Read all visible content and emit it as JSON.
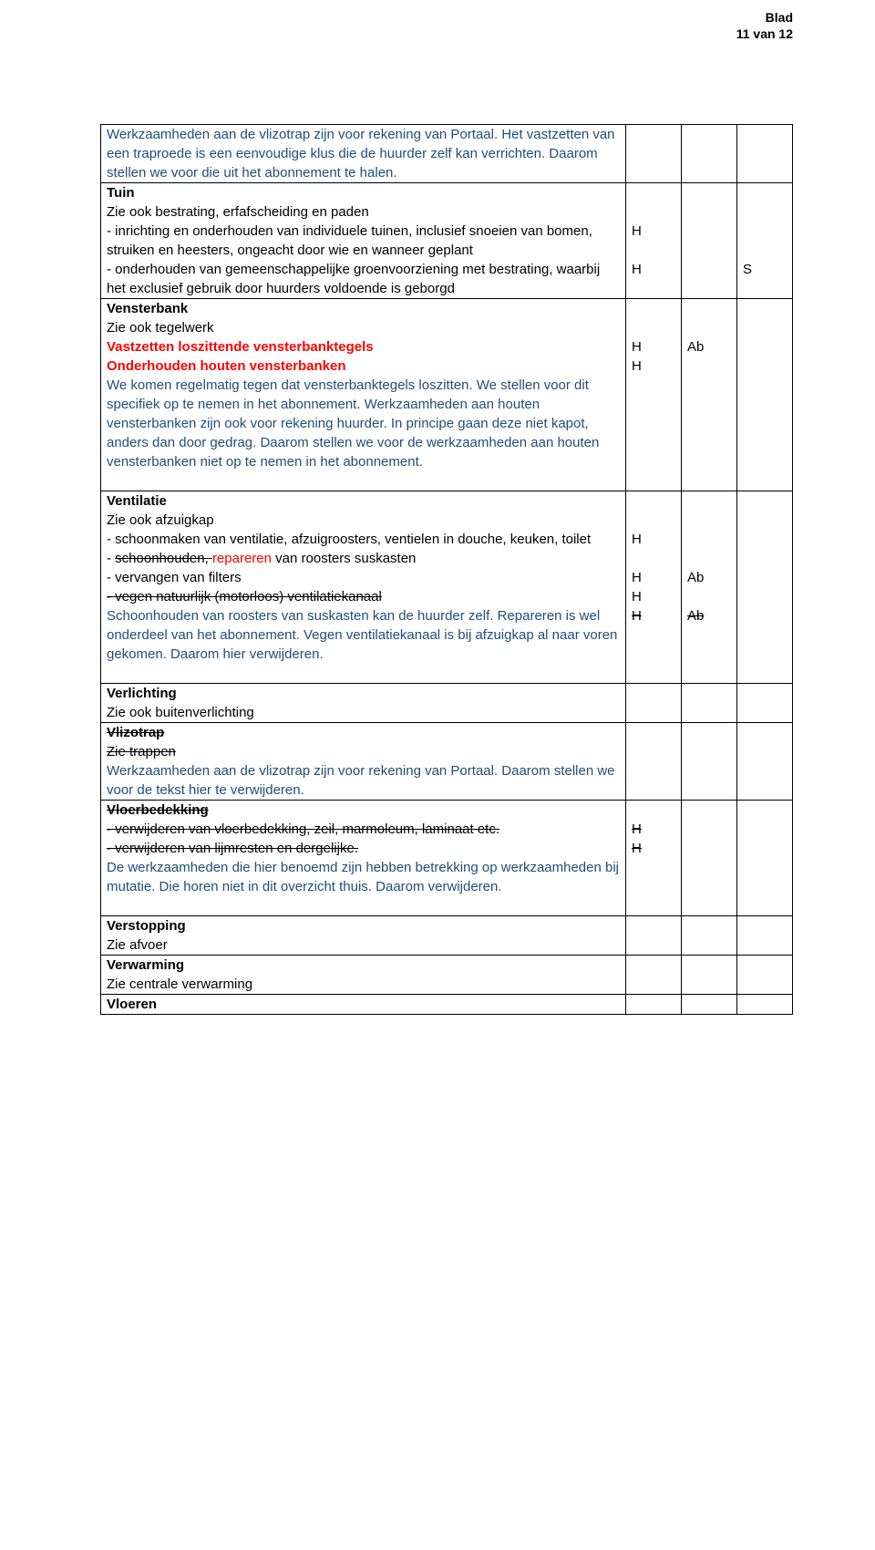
{
  "header": {
    "line1": "Blad",
    "line2": "11 van 12"
  },
  "colors": {
    "black": "#000000",
    "blue": "#1f4e79",
    "red": "#ff0000"
  },
  "rows": [
    {
      "main": [
        {
          "text": "Werkzaamheden aan de vlizotrap zijn voor rekening van Portaal. Het vastzetten van een traproede is een eenvoudige klus die de huurder zelf kan verrichten. Daarom stellen we voor die uit het abonnement te halen.",
          "cls": "blue"
        }
      ],
      "c1": "",
      "c2": "",
      "c3": ""
    },
    {
      "main": [
        {
          "text": "Tuin",
          "cls": "black bold"
        },
        {
          "text": "Zie ook bestrating, erfafscheiding en paden",
          "cls": "black"
        },
        {
          "text": "- inrichting en onderhouden van individuele tuinen, inclusief snoeien van bomen, struiken en heesters, ongeacht door wie en wanneer geplant",
          "cls": "black"
        },
        {
          "text": "- onderhouden van gemeenschappelijke groenvoorziening met bestrating, waarbij het exclusief gebruik door huurders voldoende is geborgd",
          "cls": "black"
        }
      ],
      "c1_lines": [
        "",
        "",
        "H",
        "",
        "H",
        ""
      ],
      "c2": "",
      "c3_lines": [
        "",
        "",
        "",
        "",
        "S",
        ""
      ]
    },
    {
      "main": [
        {
          "text": "Vensterbank",
          "cls": "black bold"
        },
        {
          "text": "Zie ook tegelwerk",
          "cls": "black"
        },
        {
          "text": "Vastzetten loszittende vensterbanktegels",
          "cls": "red bold"
        },
        {
          "text": "Onderhouden houten vensterbanken",
          "cls": "red bold"
        },
        {
          "text": "We komen regelmatig tegen dat vensterbanktegels loszitten. We stellen voor dit specifiek op te nemen in het abonnement. Werkzaamheden aan houten vensterbanken zijn ook voor rekening huurder. In principe gaan deze niet kapot, anders dan door gedrag. Daarom stellen we voor de werkzaamheden aan houten vensterbanken niet op te nemen in het abonnement.",
          "cls": "blue"
        }
      ],
      "c1_lines": [
        "",
        "",
        "H",
        "H",
        "",
        "",
        "",
        "",
        "",
        ""
      ],
      "c2_lines": [
        "",
        "",
        "Ab",
        "",
        "",
        "",
        "",
        "",
        "",
        ""
      ],
      "c3": ""
    },
    {
      "main": [
        {
          "text": "Ventilatie",
          "cls": "black bold"
        },
        {
          "text": "Zie ook afzuigkap",
          "cls": "black"
        },
        {
          "text": "- schoonmaken van ventilatie, afzuigroosters, ventielen in douche, keuken, toilet",
          "cls": "black"
        },
        {
          "segments": [
            {
              "text": "- ",
              "cls": "black"
            },
            {
              "text": "schoonhouden, ",
              "cls": "black strike"
            },
            {
              "text": "repareren ",
              "cls": "red"
            },
            {
              "text": "van roosters suskasten",
              "cls": "black"
            }
          ]
        },
        {
          "text": "- vervangen van filters",
          "cls": "black"
        },
        {
          "text": "- vegen natuurlijk (motorloos) ventilatiekanaal",
          "cls": "black strike"
        },
        {
          "text": "Schoonhouden van roosters van suskasten kan de huurder zelf. Repareren is wel onderdeel van het abonnement. Vegen ventilatiekanaal is bij afzuigkap al naar voren gekomen. Daarom hier verwijderen.",
          "cls": "blue"
        }
      ],
      "c1_lines": [
        "",
        "",
        "H",
        "",
        "H",
        "H",
        {
          "text": "H",
          "cls": "strike"
        },
        "",
        "",
        ""
      ],
      "c2_lines": [
        "",
        "",
        "",
        "",
        "Ab",
        "",
        {
          "text": "Ab",
          "cls": "strike"
        },
        "",
        "",
        ""
      ],
      "c3": ""
    },
    {
      "main": [
        {
          "text": "Verlichting",
          "cls": "black bold"
        },
        {
          "text": "Zie ook buitenverlichting",
          "cls": "black"
        }
      ],
      "c1": "",
      "c2": "",
      "c3": ""
    },
    {
      "main": [
        {
          "text": "Vlizotrap",
          "cls": "black bold strike"
        },
        {
          "text": "Zie trappen",
          "cls": "black strike"
        },
        {
          "text": "Werkzaamheden aan de vlizotrap zijn voor rekening van Portaal. Daarom stellen we voor de tekst hier te verwijderen.",
          "cls": "blue"
        }
      ],
      "c1": "",
      "c2": "",
      "c3": ""
    },
    {
      "main": [
        {
          "text": "Vloerbedekking",
          "cls": "black bold strike"
        },
        {
          "text": "- verwijderen van vloerbedekking, zeil, marmoleum, laminaat etc.",
          "cls": "black strike"
        },
        {
          "text": "- verwijderen van lijmresten en dergelijke.",
          "cls": "black strike"
        },
        {
          "text": "De werkzaamheden die hier benoemd zijn hebben betrekking op werkzaamheden bij mutatie. Die horen niet in dit overzicht thuis. Daarom verwijderen.",
          "cls": "blue"
        }
      ],
      "c1_lines": [
        "",
        {
          "text": "H",
          "cls": "strike"
        },
        {
          "text": "H",
          "cls": "strike"
        },
        "",
        "",
        ""
      ],
      "c2": "",
      "c3": ""
    },
    {
      "main": [
        {
          "text": "Verstopping",
          "cls": "black bold"
        },
        {
          "text": "Zie afvoer",
          "cls": "black"
        }
      ],
      "c1": "",
      "c2": "",
      "c3": ""
    },
    {
      "main": [
        {
          "text": "Verwarming",
          "cls": "black bold"
        },
        {
          "text": "Zie centrale verwarming",
          "cls": "black"
        }
      ],
      "c1": "",
      "c2": "",
      "c3": ""
    },
    {
      "main": [
        {
          "text": "Vloeren",
          "cls": "black bold"
        }
      ],
      "c1": "",
      "c2": "",
      "c3": ""
    }
  ]
}
